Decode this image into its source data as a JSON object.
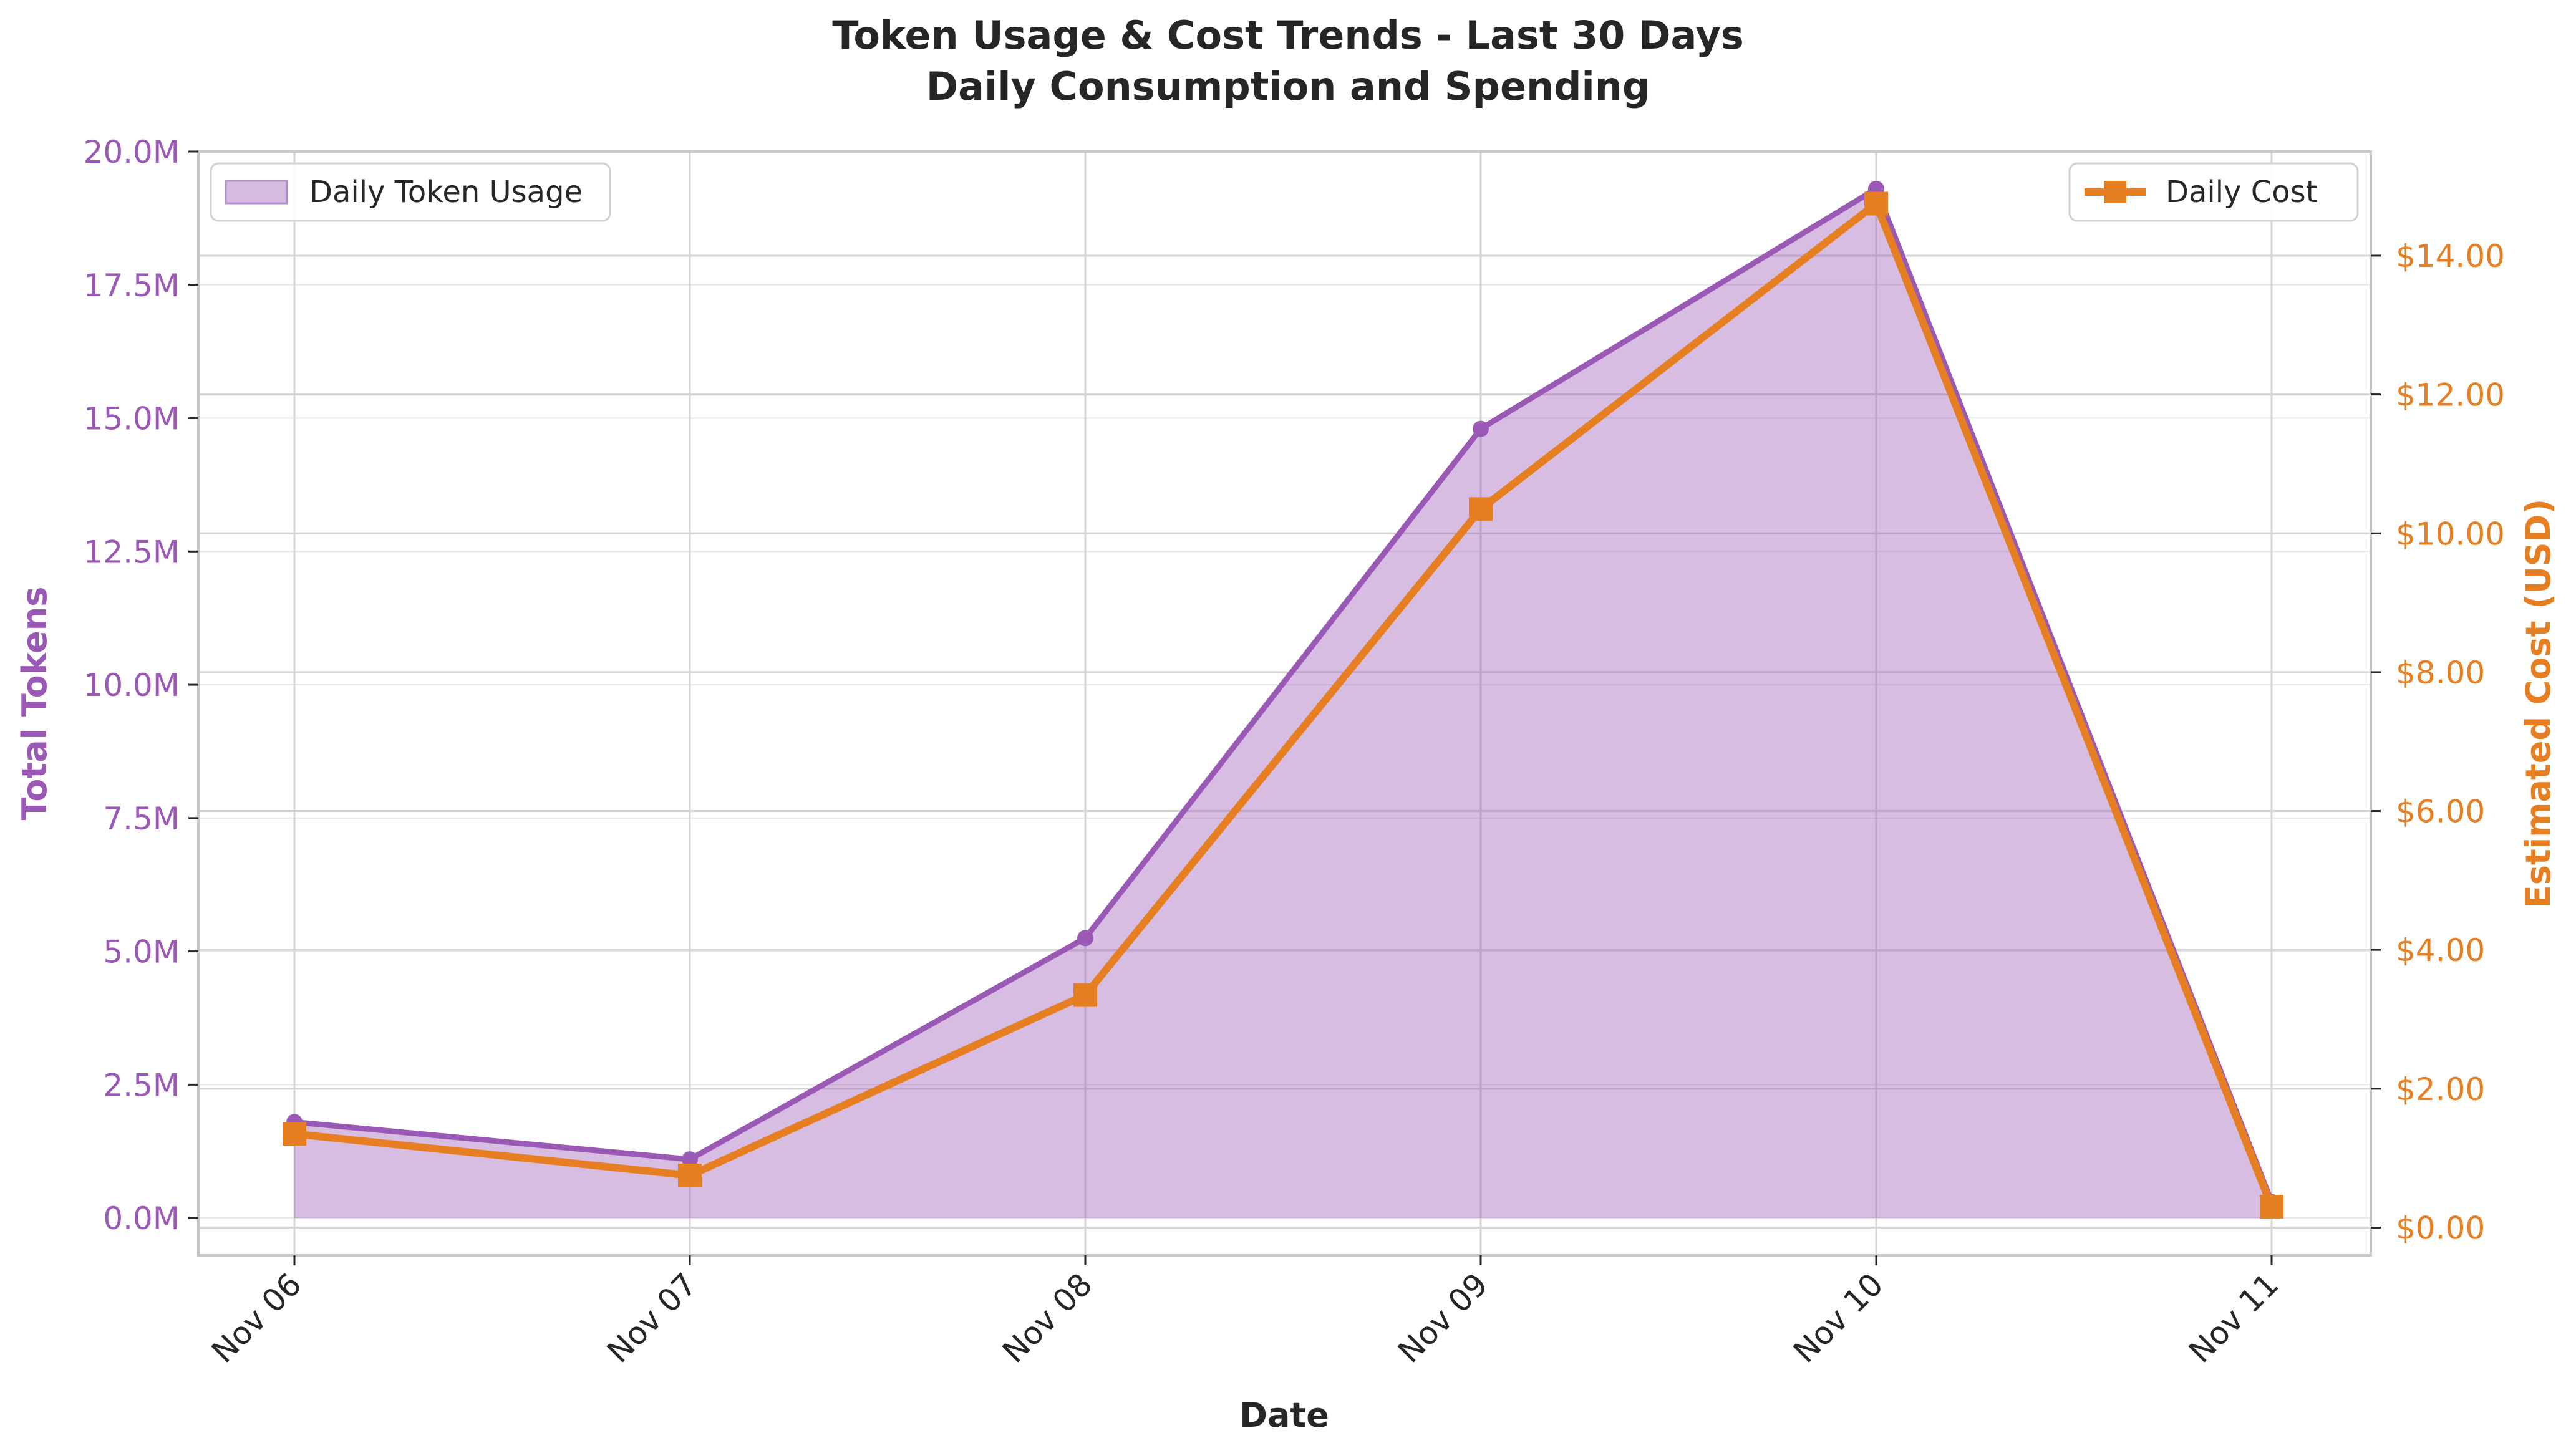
{
  "chart_data": {
    "type": "line",
    "title": "Token Usage & Cost Trends - Last 30 Days",
    "subtitle": "Daily Consumption and Spending",
    "xlabel": "Date",
    "ylabel_left": "Total Tokens",
    "ylabel_right": "Estimated Cost (USD)",
    "categories": [
      "Nov 06",
      "Nov 07",
      "Nov 08",
      "Nov 09",
      "Nov 10",
      "Nov 11"
    ],
    "y_left_lim": [
      -0.7,
      20.0
    ],
    "y_right_lim": [
      -0.4,
      15.5
    ],
    "y_left_ticks": [
      0,
      2.5,
      5,
      7.5,
      10,
      12.5,
      15,
      17.5,
      20
    ],
    "y_left_tick_labels": [
      "0.0M",
      "2.5M",
      "5.0M",
      "7.5M",
      "10.0M",
      "12.5M",
      "15.0M",
      "17.5M",
      "20.0M"
    ],
    "y_right_ticks": [
      0,
      2,
      4,
      6,
      8,
      10,
      12,
      14
    ],
    "y_right_tick_labels": [
      "$0.00",
      "$2.00",
      "$4.00",
      "$6.00",
      "$8.00",
      "$10.00",
      "$12.00",
      "$14.00"
    ],
    "grid": true,
    "series": [
      {
        "name": "Daily Token Usage",
        "axis": "left",
        "unit": "M tokens",
        "style": "area",
        "color": "#9b59b6",
        "values": [
          1.8,
          1.1,
          5.25,
          14.8,
          19.3,
          0.3
        ]
      },
      {
        "name": "Daily Cost",
        "axis": "right",
        "unit": "USD",
        "style": "line",
        "marker": "square",
        "color": "#e67e22",
        "values": [
          1.35,
          0.75,
          3.35,
          10.35,
          14.75,
          0.3
        ]
      }
    ],
    "legend_left_position": "top-left",
    "legend_right_position": "top-right",
    "colors": {
      "tokens": "#9b59b6",
      "tokens_fill": "#d6bbe1",
      "cost": "#e67e22",
      "text": "#262626",
      "grid": "#d4d4d4",
      "spine": "#c8c8c8"
    }
  }
}
